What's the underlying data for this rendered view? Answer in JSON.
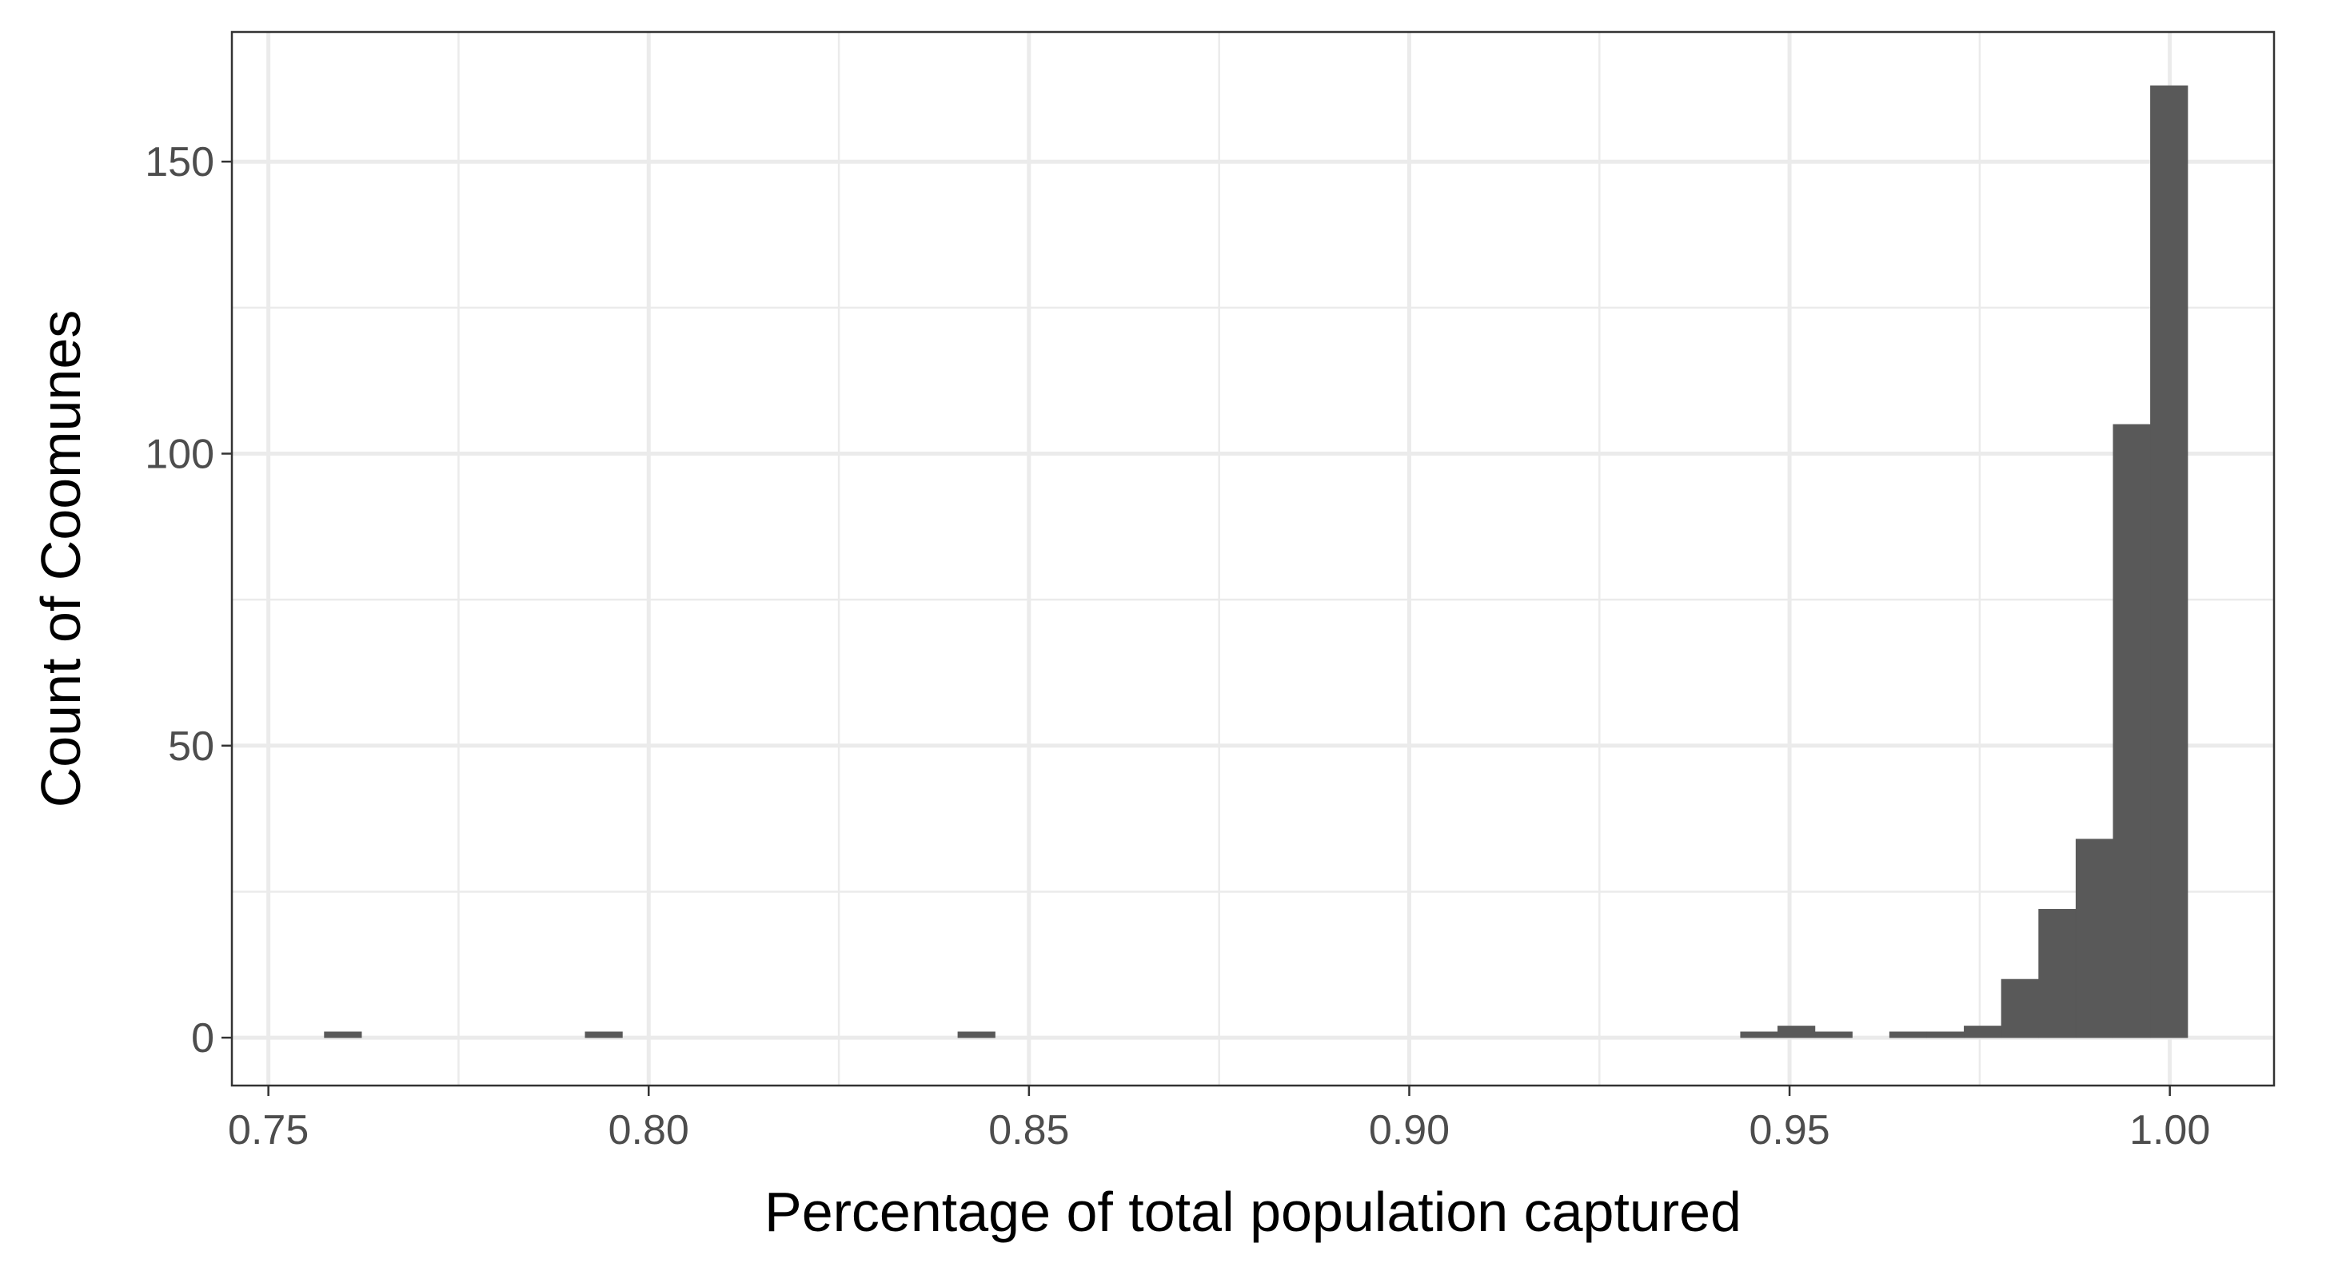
{
  "chart_data": {
    "type": "bar",
    "title": "",
    "xlabel": "Percentage of total population captured",
    "ylabel": "Count of Coomunes",
    "xlim": [
      0.7452,
      1.0137
    ],
    "ylim": [
      -8.2,
      172.2
    ],
    "x_ticks": [
      {
        "value": 0.75,
        "label": "0.75"
      },
      {
        "value": 0.8,
        "label": "0.80"
      },
      {
        "value": 0.85,
        "label": "0.85"
      },
      {
        "value": 0.9,
        "label": "0.90"
      },
      {
        "value": 0.95,
        "label": "0.95"
      },
      {
        "value": 1.0,
        "label": "1.00"
      }
    ],
    "x_minor_ticks": [
      0.775,
      0.825,
      0.875,
      0.925,
      0.975
    ],
    "y_ticks": [
      {
        "value": 0,
        "label": "0"
      },
      {
        "value": 50,
        "label": "50"
      },
      {
        "value": 100,
        "label": "100"
      },
      {
        "value": 150,
        "label": "150"
      }
    ],
    "y_minor_ticks": [
      25,
      75,
      125
    ],
    "bin_width": 0.0049,
    "bins": [
      {
        "x": 0.7598,
        "count": 1
      },
      {
        "x": 0.7941,
        "count": 1
      },
      {
        "x": 0.8431,
        "count": 1
      },
      {
        "x": 0.946,
        "count": 1
      },
      {
        "x": 0.9509,
        "count": 2
      },
      {
        "x": 0.9558,
        "count": 1
      },
      {
        "x": 0.9656,
        "count": 1
      },
      {
        "x": 0.9705,
        "count": 1
      },
      {
        "x": 0.9754,
        "count": 2
      },
      {
        "x": 0.9803,
        "count": 10
      },
      {
        "x": 0.9852,
        "count": 22
      },
      {
        "x": 0.9901,
        "count": 34
      },
      {
        "x": 0.995,
        "count": 105
      },
      {
        "x": 0.9999,
        "count": 163
      }
    ],
    "bar_color": "#595959",
    "grid": true,
    "grid_color": "#ebebeb",
    "panel_border_color": "#333333",
    "background": "#ffffff",
    "legend": "none"
  }
}
